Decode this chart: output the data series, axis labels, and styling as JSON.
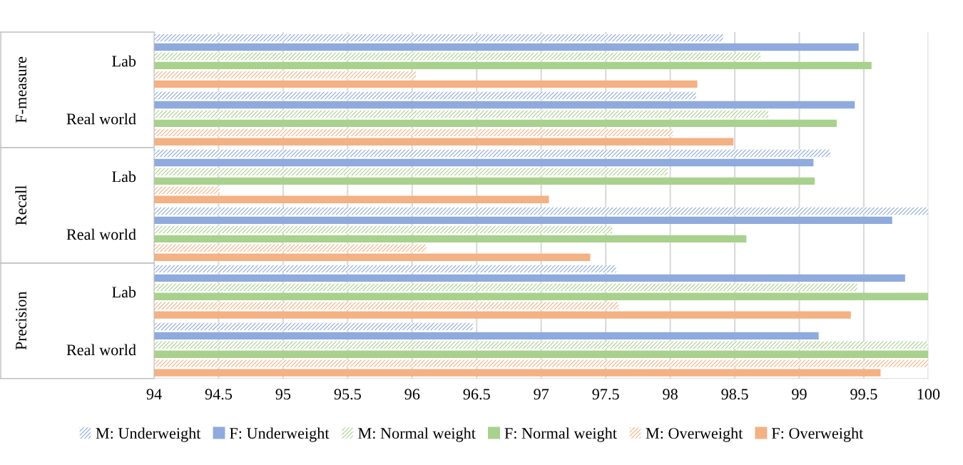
{
  "chart_data": {
    "type": "bar",
    "orientation": "horizontal",
    "categories": [
      "Lab",
      "Real world",
      "Lab",
      "Real world",
      "Lab",
      "Real world"
    ],
    "annotations": [
      "F-measure",
      "Recall",
      "Precision"
    ],
    "series": [
      {
        "name": "M: Underweight",
        "color": "#8faadc",
        "values": [
          98.41,
          98.2,
          99.24,
          100,
          97.58,
          96.47
        ]
      },
      {
        "name": "F: Underweight",
        "color": "#8faadc",
        "values": [
          99.46,
          99.43,
          99.11,
          99.72,
          99.82,
          99.15
        ]
      },
      {
        "name": "M: Normal weight",
        "color": "#a9d18e",
        "values": [
          98.7,
          98.76,
          97.98,
          97.55,
          99.45,
          100
        ]
      },
      {
        "name": "F: Normal weight",
        "color": "#a9d18e",
        "values": [
          99.56,
          99.29,
          99.12,
          98.59,
          100,
          100
        ]
      },
      {
        "name": "M: Overweight",
        "color": "#f4b183",
        "values": [
          96.03,
          98.02,
          94.51,
          96.11,
          97.6,
          100
        ]
      },
      {
        "name": "F: Overweight",
        "color": "#f4b183",
        "values": [
          98.21,
          98.49,
          97.06,
          97.38,
          99.4,
          99.63
        ]
      }
    ],
    "xlim": [
      94,
      100
    ],
    "xticks": [
      94,
      94.5,
      95,
      95.5,
      96,
      96.5,
      97,
      97.5,
      98,
      98.5,
      99,
      99.5,
      100
    ],
    "grid": "x",
    "legend": "bottom"
  }
}
